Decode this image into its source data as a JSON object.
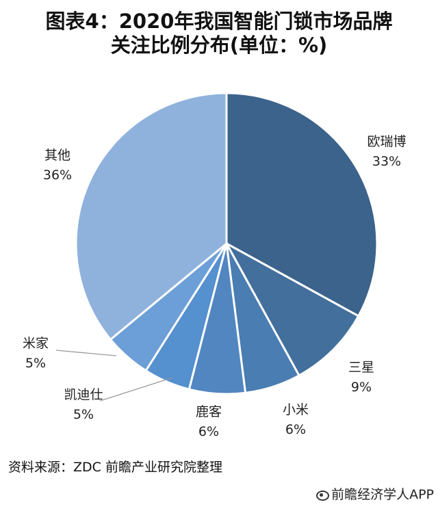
{
  "title_lines": [
    "图表4：2020年我国智能门锁市场品牌",
    "关注比例分布(单位：%)"
  ],
  "source": "资料来源：ZDC 前瞻产业研究院整理",
  "credit": "前瞻经济学人APP",
  "chart_data": {
    "type": "pie",
    "title": "图表4：2020年我国智能门锁市场品牌关注比例分布(单位：%)",
    "unit": "%",
    "slices": [
      {
        "name": "欧瑞博",
        "value": 33,
        "label": "33%",
        "color": "#3b638b"
      },
      {
        "name": "三星",
        "value": 9,
        "label": "9%",
        "color": "#426f9c"
      },
      {
        "name": "小米",
        "value": 6,
        "label": "6%",
        "color": "#4a7db2"
      },
      {
        "name": "鹿客",
        "value": 6,
        "label": "6%",
        "color": "#5186c0"
      },
      {
        "name": "凯迪仕",
        "value": 5,
        "label": "5%",
        "color": "#5590cf"
      },
      {
        "name": "米家",
        "value": 5,
        "label": "5%",
        "color": "#6c9fd7"
      },
      {
        "name": "其他",
        "value": 36,
        "label": "36%",
        "color": "#8fb2dc"
      }
    ]
  }
}
